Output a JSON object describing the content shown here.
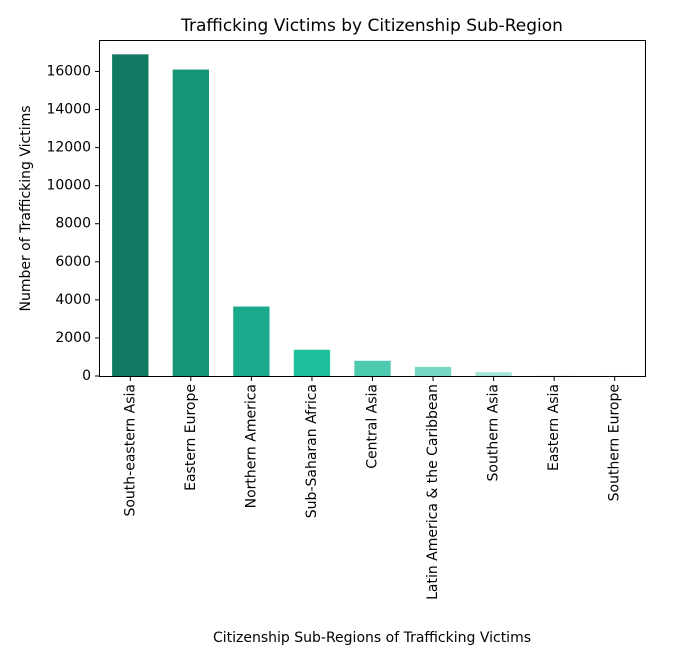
{
  "chart_data": {
    "type": "bar",
    "title": "Trafficking Victims by Citizenship Sub-Region",
    "xlabel": "Citizenship Sub-Regions of Trafficking Victims",
    "ylabel": "Number of Trafficking Victims",
    "categories": [
      "South-eastern Asia",
      "Eastern Europe",
      "Northern America",
      "Sub-Saharan Africa",
      "Central Asia",
      "Latin America & the Caribbean",
      "Southern Asia",
      "Eastern Asia",
      "Southern Europe"
    ],
    "values": [
      16900,
      16100,
      3650,
      1380,
      800,
      480,
      200,
      20,
      10
    ],
    "colors": [
      "#127a62",
      "#16947a",
      "#1aaa8b",
      "#1fc09c",
      "#4ccbb0",
      "#76d7c4",
      "#a3e4d7",
      "#d1f2eb",
      "#e8f8f5"
    ],
    "ylim": [
      0,
      17600
    ],
    "yticks": [
      0,
      2000,
      4000,
      6000,
      8000,
      10000,
      12000,
      14000,
      16000
    ],
    "grid": false,
    "legend": "none"
  }
}
